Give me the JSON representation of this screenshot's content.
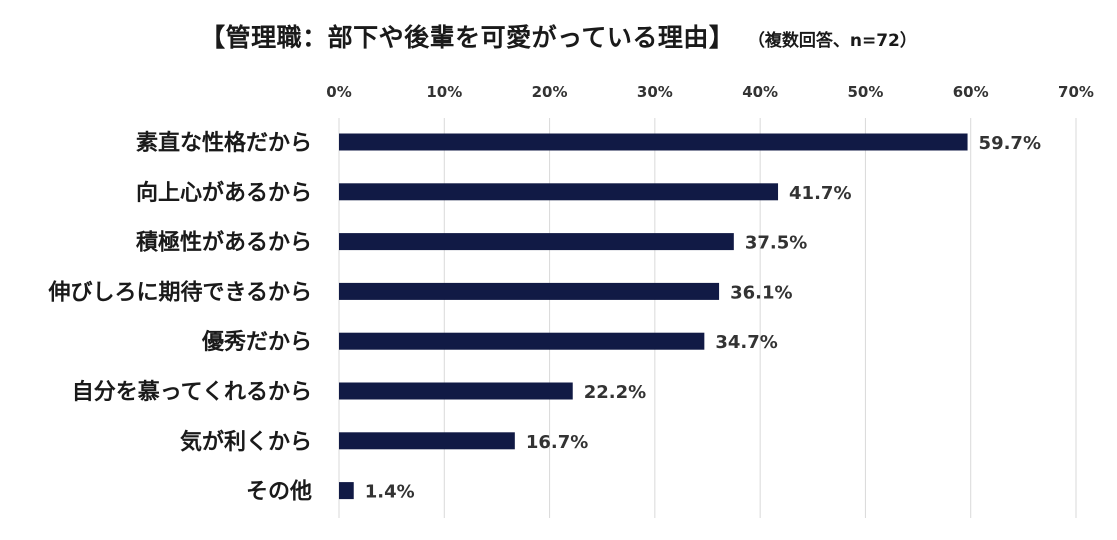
{
  "title": {
    "main": "【管理職：部下や後輩を可愛がっている理由】",
    "sub": "（複数回答、n=72）"
  },
  "colors": {
    "bar": "#111a45",
    "grid": "#d9d9d9",
    "text": "#1a1a1a"
  },
  "chart_data": {
    "type": "bar",
    "orientation": "horizontal",
    "title": "【管理職：部下や後輩を可愛がっている理由】",
    "subtitle": "（複数回答、n=72）",
    "categories": [
      "素直な性格だから",
      "向上心があるから",
      "積極性があるから",
      "伸びしろに期待できるから",
      "優秀だから",
      "自分を慕ってくれるから",
      "気が利くから",
      "その他"
    ],
    "values": [
      59.7,
      41.7,
      37.5,
      36.1,
      34.7,
      22.2,
      16.7,
      1.4
    ],
    "value_labels": [
      "59.7%",
      "41.7%",
      "37.5%",
      "36.1%",
      "34.7%",
      "22.2%",
      "16.7%",
      "1.4%"
    ],
    "xlim": [
      0,
      70
    ],
    "x_ticks": [
      0,
      10,
      20,
      30,
      40,
      50,
      60,
      70
    ],
    "x_tick_labels": [
      "0%",
      "10%",
      "20%",
      "30%",
      "40%",
      "50%",
      "60%",
      "70%"
    ],
    "x_axis_position": "top",
    "grid": true,
    "legend": "none"
  }
}
